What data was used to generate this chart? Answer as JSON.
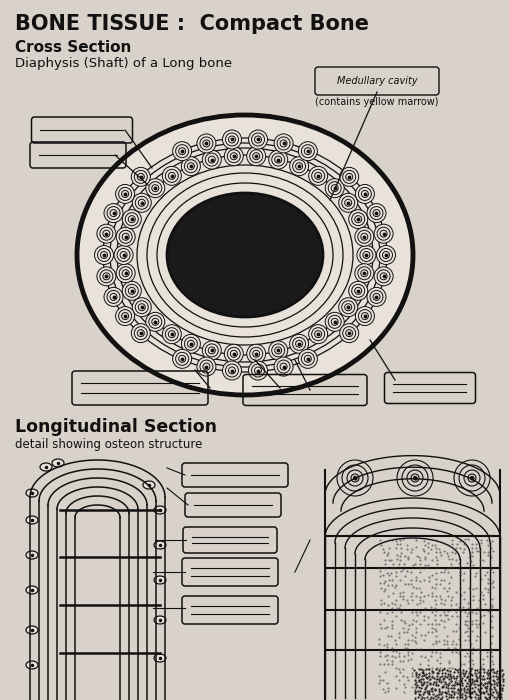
{
  "title": "BONE TISSUE :  Compact Bone",
  "subtitle1": "Cross Section",
  "subtitle2": "Diaphysis (Shaft) of a Long bone",
  "medullary_label": "Medullary cavity",
  "medullary_sub": "(contains yellow marrow)",
  "long_section_title": "Longitudinal Section",
  "long_section_sub": "detail showing osteon structure",
  "bg_color": "#d8d2ca",
  "bone_fill": "#e8e2da",
  "text_color": "#111111",
  "diagram_color": "#111111"
}
